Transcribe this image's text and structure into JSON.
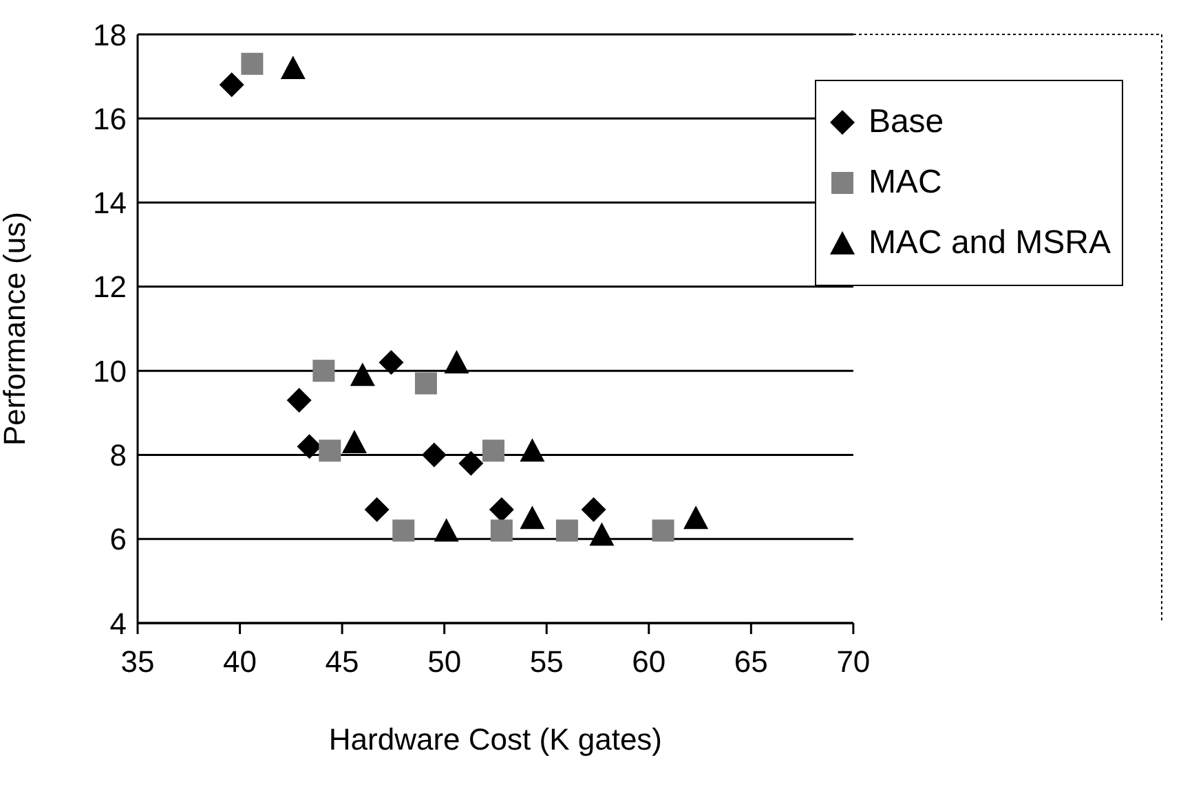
{
  "chart_data": {
    "type": "scatter",
    "xlabel": "Hardware Cost (K gates)",
    "ylabel": "Performance (us)",
    "xlim": [
      35,
      70
    ],
    "xticks": [
      35,
      40,
      45,
      50,
      55,
      60,
      65,
      70
    ],
    "ylim": [
      4,
      18
    ],
    "yticks": [
      4,
      6,
      8,
      10,
      12,
      14,
      16,
      18
    ],
    "grid": "y",
    "legend": "top right",
    "series": [
      {
        "name": "Base",
        "color": "#000000",
        "marker": "diamond",
        "x": [
          39.6,
          42.9,
          43.4,
          46.7,
          47.4,
          49.5,
          51.3,
          52.8,
          57.3
        ],
        "values": [
          16.8,
          9.3,
          8.2,
          6.7,
          10.2,
          8.0,
          7.8,
          6.7,
          6.7
        ]
      },
      {
        "name": "MAC",
        "color": "#808080",
        "marker": "square",
        "x": [
          40.6,
          44.1,
          44.4,
          48.0,
          49.1,
          52.4,
          52.8,
          56.0,
          60.7
        ],
        "values": [
          17.3,
          10.0,
          8.1,
          6.2,
          9.7,
          8.1,
          6.2,
          6.2,
          6.2
        ]
      },
      {
        "name": "MAC and MSRA",
        "color": "#000000",
        "marker": "triangle",
        "x": [
          42.6,
          46.0,
          45.6,
          50.6,
          50.1,
          54.3,
          54.3,
          57.7,
          62.3
        ],
        "values": [
          17.2,
          9.9,
          8.3,
          10.2,
          6.2,
          6.5,
          8.1,
          6.1,
          6.5
        ]
      }
    ]
  }
}
